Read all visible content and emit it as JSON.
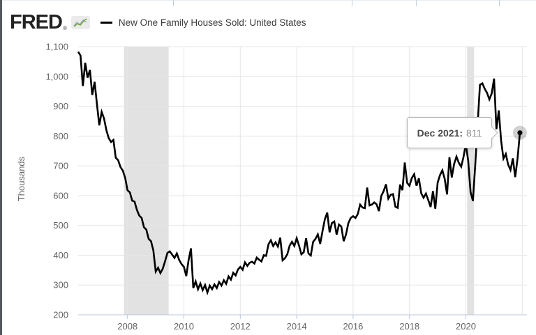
{
  "header": {
    "logo_text": "FRED",
    "logo_registered": "®",
    "logo_icon": "sparkline-chart-icon"
  },
  "tooltip": {
    "date_label": "Dec 2021:",
    "value": "811"
  },
  "colors": {
    "line": "#000000",
    "recession_band": "#e2e2e2",
    "gridline": "#e6e6e6",
    "axis": "#b9c7d9",
    "axis_label": "#636363",
    "halo": "#000000",
    "icon_green": "#79a23e",
    "icon_blue": "#9fb7cf"
  },
  "chart_data": {
    "type": "line",
    "title": "New One Family Houses Sold: United States",
    "ylabel": "Thousands",
    "xlabel": "",
    "frequency": "monthly",
    "start": "2006-04",
    "end": "2021-12",
    "ylim": [
      200,
      1100
    ],
    "y_ticks": [
      200,
      300,
      400,
      500,
      600,
      700,
      800,
      900,
      1000,
      1100
    ],
    "x_grid_years": [
      2008,
      2010,
      2012,
      2014,
      2016,
      2018,
      2020,
      2022
    ],
    "x_tick_labels": [
      "2008",
      "2010",
      "2012",
      "2014",
      "2016",
      "2018",
      "2020"
    ],
    "grid": true,
    "legend_position": "top",
    "recessions": [
      {
        "start": "2007-12",
        "end": "2009-06"
      },
      {
        "start": "2020-02",
        "end": "2020-04"
      }
    ],
    "highlight_point": {
      "date": "2021-12",
      "label": "Dec 2021",
      "value": 811
    },
    "values": [
      1083,
      1070,
      968,
      1046,
      996,
      1022,
      938,
      982,
      906,
      836,
      881,
      859,
      820,
      793,
      780,
      787,
      727,
      719,
      696,
      684,
      660,
      618,
      611,
      583,
      580,
      552,
      533,
      525,
      494,
      486,
      455,
      447,
      416,
      345,
      358,
      340,
      355,
      380,
      408,
      413,
      402,
      391,
      406,
      384,
      370,
      361,
      330,
      384,
      423,
      290,
      312,
      286,
      305,
      283,
      300,
      275,
      298,
      286,
      302,
      290,
      310,
      298,
      316,
      304,
      329,
      318,
      341,
      332,
      352,
      361,
      351,
      376,
      364,
      375,
      378,
      372,
      392,
      385,
      379,
      400,
      398,
      437,
      450,
      431,
      443,
      429,
      459,
      383,
      390,
      403,
      432,
      445,
      431,
      457,
      432,
      403,
      410,
      457,
      406,
      399,
      445,
      455,
      470,
      438,
      481,
      521,
      543,
      477,
      508,
      513,
      469,
      503,
      496,
      447,
      470,
      508,
      525,
      531,
      525,
      538,
      570,
      560,
      558,
      627,
      567,
      570,
      577,
      571,
      548,
      599,
      615,
      638,
      590,
      603,
      605,
      563,
      559,
      637,
      618,
      711,
      643,
      633,
      659,
      672,
      633,
      658,
      608,
      593,
      607,
      585,
      562,
      615,
      556,
      644,
      669,
      685,
      656,
      604,
      729,
      661,
      706,
      731,
      710,
      697,
      730,
      774,
      716,
      612,
      582,
      704,
      839,
      972,
      977,
      959,
      945,
      923,
      943,
      993,
      823,
      886,
      785,
      724,
      740,
      704,
      686,
      725,
      662,
      725,
      811
    ]
  }
}
